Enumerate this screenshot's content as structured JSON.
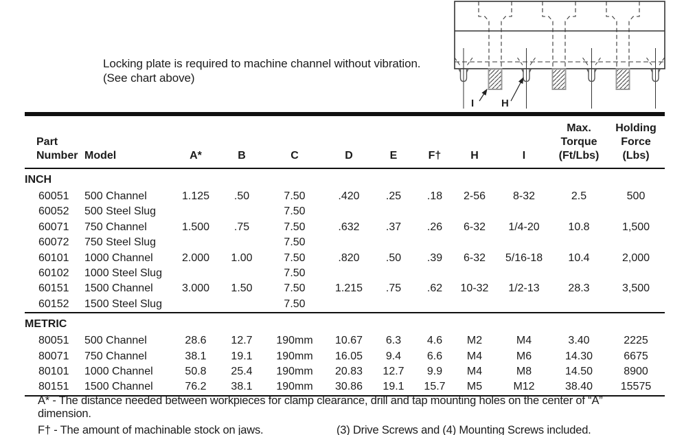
{
  "intro": {
    "line1": "Locking plate is required to machine channel without vibration.",
    "line2": "(See chart above)"
  },
  "diagram": {
    "label_i": "I",
    "label_h": "H"
  },
  "table": {
    "columns": [
      {
        "lines": [
          "Part",
          "Number"
        ]
      },
      {
        "lines": [
          "Model"
        ]
      },
      {
        "lines": [
          "A*"
        ]
      },
      {
        "lines": [
          "B"
        ]
      },
      {
        "lines": [
          "C"
        ]
      },
      {
        "lines": [
          "D"
        ]
      },
      {
        "lines": [
          "E"
        ]
      },
      {
        "lines": [
          "F†"
        ]
      },
      {
        "lines": [
          "H"
        ]
      },
      {
        "lines": [
          "I"
        ]
      },
      {
        "lines": [
          "Max.",
          "Torque",
          "(Ft/Lbs)"
        ]
      },
      {
        "lines": [
          "Holding",
          "Force",
          "(Lbs)"
        ]
      }
    ],
    "sections": [
      {
        "label": "INCH",
        "rows": [
          [
            "60051",
            "500 Channel",
            "1.125",
            ".50",
            "7.50",
            ".420",
            ".25",
            ".18",
            "2-56",
            "8-32",
            "2.5",
            "500"
          ],
          [
            "60052",
            "500 Steel Slug",
            "",
            "",
            "7.50",
            "",
            "",
            "",
            "",
            "",
            "",
            ""
          ],
          [
            "60071",
            "750 Channel",
            "1.500",
            ".75",
            "7.50",
            ".632",
            ".37",
            ".26",
            "6-32",
            "1/4-20",
            "10.8",
            "1,500"
          ],
          [
            "60072",
            "750 Steel Slug",
            "",
            "",
            "7.50",
            "",
            "",
            "",
            "",
            "",
            "",
            ""
          ],
          [
            "60101",
            "1000 Channel",
            "2.000",
            "1.00",
            "7.50",
            ".820",
            ".50",
            ".39",
            "6-32",
            "5/16-18",
            "10.4",
            "2,000"
          ],
          [
            "60102",
            "1000 Steel Slug",
            "",
            "",
            "7.50",
            "",
            "",
            "",
            "",
            "",
            "",
            ""
          ],
          [
            "60151",
            "1500 Channel",
            "3.000",
            "1.50",
            "7.50",
            "1.215",
            ".75",
            ".62",
            "10-32",
            "1/2-13",
            "28.3",
            "3,500"
          ],
          [
            "60152",
            "1500 Steel Slug",
            "",
            "",
            "7.50",
            "",
            "",
            "",
            "",
            "",
            "",
            ""
          ]
        ]
      },
      {
        "label": "METRIC",
        "rows": [
          [
            "80051",
            "500 Channel",
            "28.6",
            "12.7",
            "190mm",
            "10.67",
            "6.3",
            "4.6",
            "M2",
            "M4",
            "3.40",
            "2225"
          ],
          [
            "80071",
            "750 Channel",
            "38.1",
            "19.1",
            "190mm",
            "16.05",
            "9.4",
            "6.6",
            "M4",
            "M6",
            "14.30",
            "6675"
          ],
          [
            "80101",
            "1000 Channel",
            "50.8",
            "25.4",
            "190mm",
            "20.83",
            "12.7",
            "9.9",
            "M4",
            "M8",
            "14.50",
            "8900"
          ],
          [
            "80151",
            "1500 Channel",
            "76.2",
            "38.1",
            "190mm",
            "30.86",
            "19.1",
            "15.7",
            "M5",
            "M12",
            "38.40",
            "15575"
          ]
        ]
      }
    ]
  },
  "footnotes": {
    "a_note": "A* - The distance needed between workpieces for clamp clearance, drill and tap mounting holes on the center of “A” dimension.",
    "f_note": "F† - The amount of machinable stock on jaws.",
    "screws_note": "(3) Drive Screws and (4) Mounting Screws included."
  }
}
